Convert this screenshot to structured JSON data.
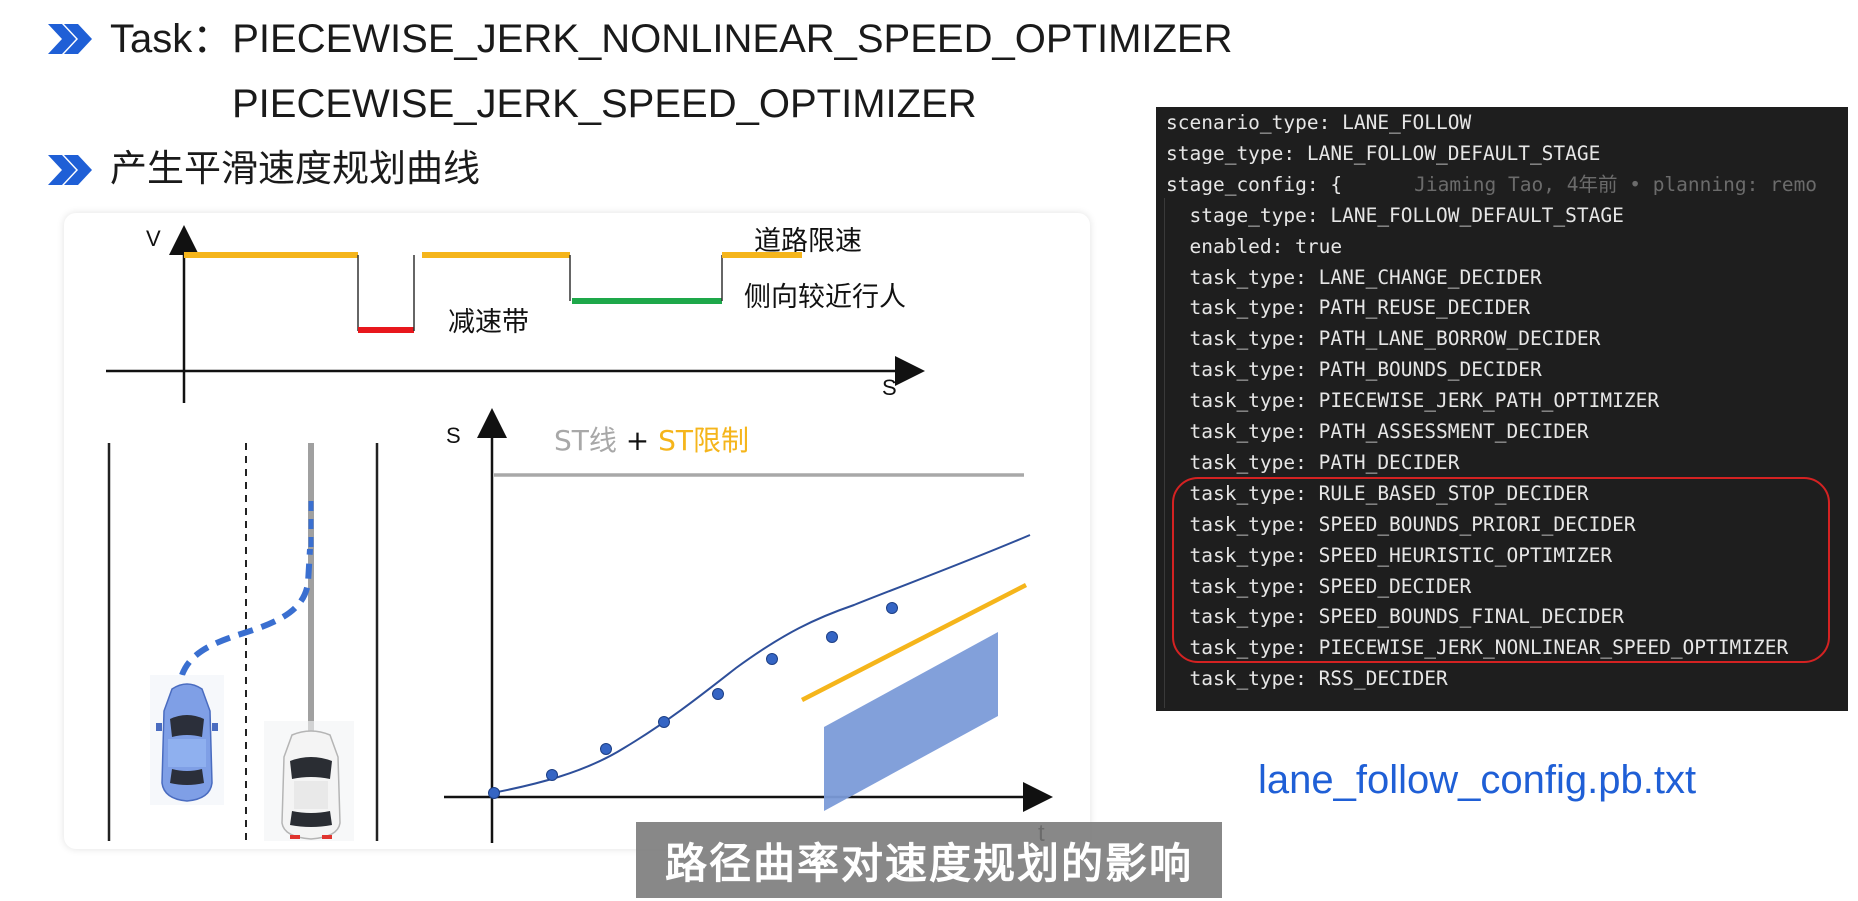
{
  "header": {
    "task_label": "Task：PIECEWISE_JERK_NONLINEAR_SPEED_OPTIMIZER",
    "task_line2": "PIECEWISE_JERK_SPEED_OPTIMIZER",
    "bullet2_text": "产生平滑速度规划曲线",
    "bullet_icon": "double-chevron-right-icon",
    "accent_color": "#1f5fd6"
  },
  "speed_limit_diagram": {
    "y_axis_label": "V",
    "x_axis_label": "S",
    "road_limit_label": "道路限速",
    "bump_label": "减速带",
    "pedestrian_label": "侧向较近行人",
    "colors": {
      "road_limit": "#f5b51b",
      "bump": "#e8171c",
      "pedestrian": "#1ea84a"
    }
  },
  "lane_scene": {
    "ego_car_icon": "blue-car-icon",
    "other_car_icon": "white-car-icon",
    "path_color": "#3a6fd0"
  },
  "st_diagram": {
    "y_axis_label": "S",
    "x_axis_label": "t",
    "legend_part1": "ST线",
    "legend_plus": " + ",
    "legend_part2": "ST限制",
    "colors": {
      "st_line": "#a8a8a8",
      "st_limit": "#f5b51b",
      "curve": "#2e4f9a",
      "obstacle": "#7b9bd8"
    }
  },
  "code": {
    "lines": [
      "scenario_type: LANE_FOLLOW",
      "stage_type: LANE_FOLLOW_DEFAULT_STAGE",
      "stage_config: {",
      "  stage_type: LANE_FOLLOW_DEFAULT_STAGE",
      "  enabled: true",
      "  task_type: LANE_CHANGE_DECIDER",
      "  task_type: PATH_REUSE_DECIDER",
      "  task_type: PATH_LANE_BORROW_DECIDER",
      "  task_type: PATH_BOUNDS_DECIDER",
      "  task_type: PIECEWISE_JERK_PATH_OPTIMIZER",
      "  task_type: PATH_ASSESSMENT_DECIDER",
      "  task_type: PATH_DECIDER",
      "  task_type: RULE_BASED_STOP_DECIDER",
      "  task_type: SPEED_BOUNDS_PRIORI_DECIDER",
      "  task_type: SPEED_HEURISTIC_OPTIMIZER",
      "  task_type: SPEED_DECIDER",
      "  task_type: SPEED_BOUNDS_FINAL_DECIDER",
      "  task_type: PIECEWISE_JERK_NONLINEAR_SPEED_OPTIMIZER",
      "  task_type: RSS_DECIDER"
    ],
    "blame": "Jiaming Tao, 4年前 • planning: remo",
    "highlight_color": "#d42222"
  },
  "filename": "lane_follow_config.pb.txt",
  "subtitle": "路径曲率对速度规划的影响"
}
